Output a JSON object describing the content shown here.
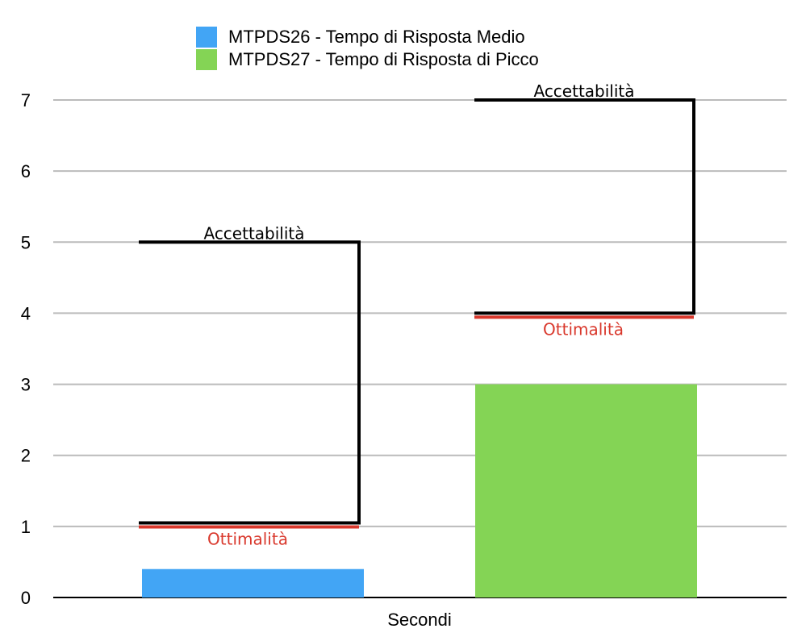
{
  "chart_data": {
    "type": "bar",
    "xlabel": "Secondi",
    "ylim": [
      0,
      7
    ],
    "yticks": [
      "0",
      "1",
      "2",
      "3",
      "4",
      "5",
      "6",
      "7"
    ],
    "grid": true,
    "legend_position": "top-center",
    "series": [
      {
        "name": "MTPDS26 - Tempo di Risposta Medio",
        "value": 0.4,
        "color": "#42a5f5",
        "thresholds": {
          "acceptability": {
            "label": "Accettabilità",
            "value": 5
          },
          "optimality": {
            "label": "Ottimalità",
            "value": 1.05
          }
        }
      },
      {
        "name": "MTPDS27 - Tempo di Risposta di Picco",
        "value": 3,
        "color": "#84d455",
        "thresholds": {
          "acceptability": {
            "label": "Accettabilità",
            "value": 7
          },
          "optimality": {
            "label": "Ottimalità",
            "value": 4
          }
        }
      }
    ],
    "colors": {
      "acceptability_line": "#000000",
      "optimality_line": "#d9382c",
      "optimality_text": "#d9382c",
      "grid": "#bbbbbb"
    }
  }
}
